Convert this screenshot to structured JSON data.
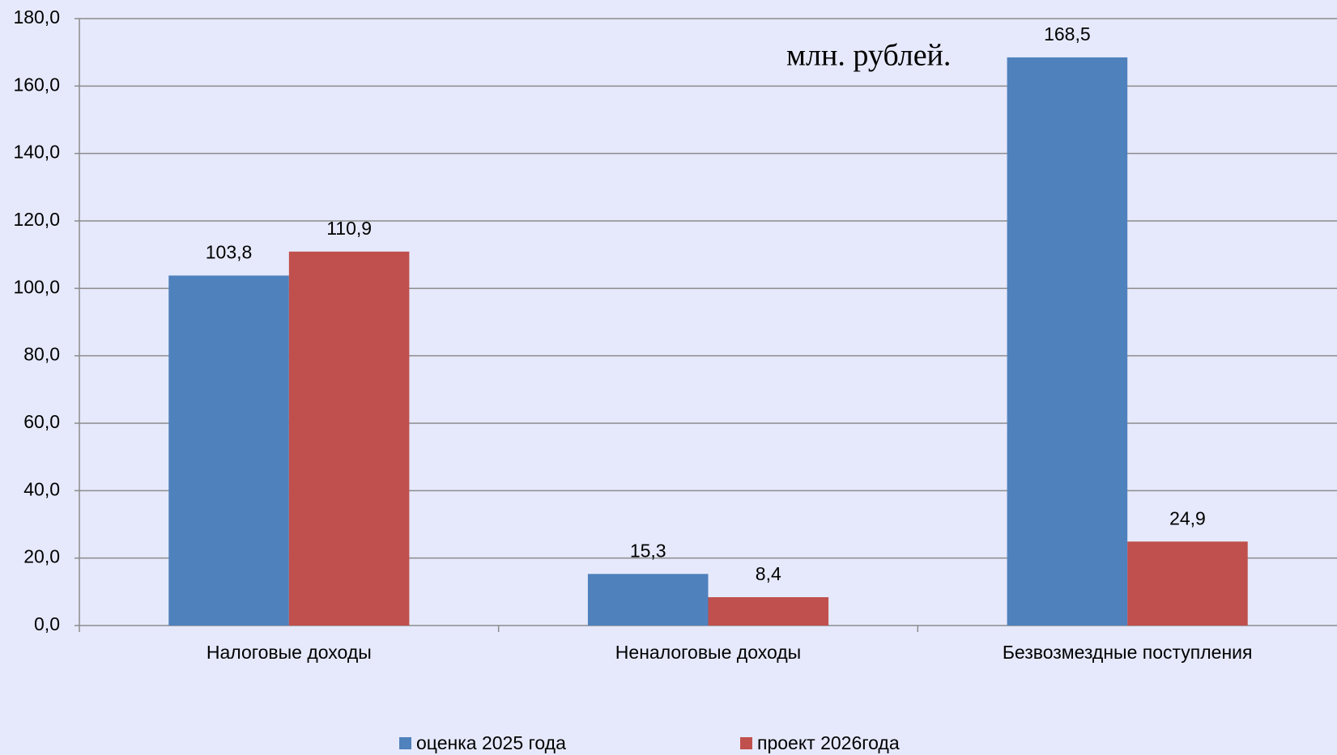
{
  "chart_data": {
    "type": "bar",
    "annotation": "млн. рублей.",
    "categories": [
      "Налоговые доходы",
      "Неналоговые доходы",
      "Безвозмездные поступления"
    ],
    "series": [
      {
        "name": "оценка 2025 года",
        "color": "#4f81bd",
        "values": [
          103.8,
          15.3,
          168.5
        ],
        "value_labels": [
          "103,8",
          "15,3",
          "168,5"
        ]
      },
      {
        "name": "проект 2026года",
        "color": "#c0504d",
        "values": [
          110.9,
          8.4,
          24.9
        ],
        "value_labels": [
          "110,9",
          "8,4",
          "24,9"
        ]
      }
    ],
    "ylim": [
      0,
      180
    ],
    "yticks": [
      {
        "value": 0,
        "label": "0,0"
      },
      {
        "value": 20,
        "label": "20,0"
      },
      {
        "value": 40,
        "label": "40,0"
      },
      {
        "value": 60,
        "label": "60,0"
      },
      {
        "value": 80,
        "label": "80,0"
      },
      {
        "value": 100,
        "label": "100,0"
      },
      {
        "value": 120,
        "label": "120,0"
      },
      {
        "value": 140,
        "label": "140,0"
      },
      {
        "value": 160,
        "label": "160,0"
      },
      {
        "value": 180,
        "label": "180,0"
      }
    ],
    "grid": true,
    "legend": "bottom"
  }
}
